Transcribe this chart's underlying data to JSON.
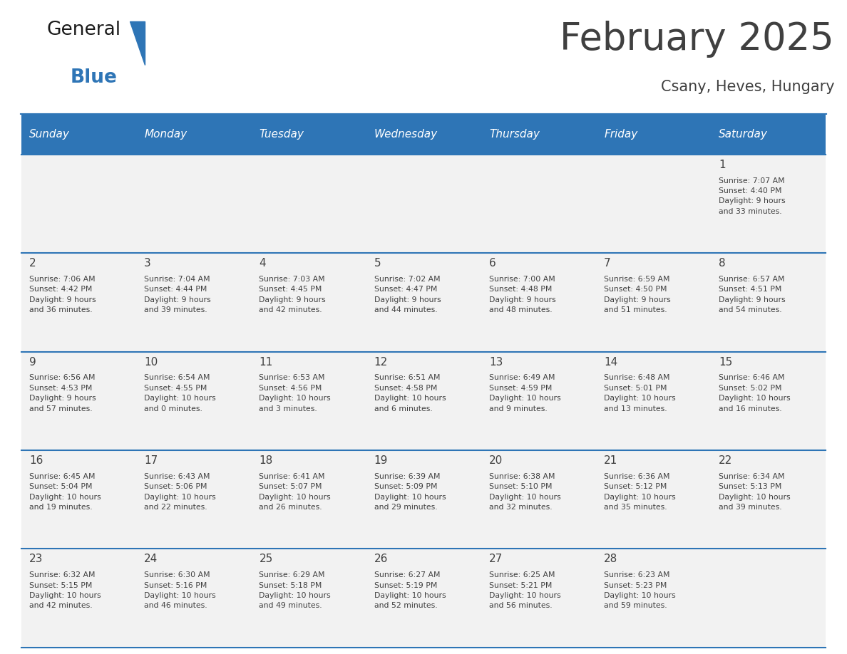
{
  "title": "February 2025",
  "subtitle": "Csany, Heves, Hungary",
  "header_color": "#2E75B6",
  "header_text_color": "#FFFFFF",
  "cell_bg_odd": "#F2F2F2",
  "cell_bg_even": "#FFFFFF",
  "divider_color": "#2E75B6",
  "text_color": "#404040",
  "days_of_week": [
    "Sunday",
    "Monday",
    "Tuesday",
    "Wednesday",
    "Thursday",
    "Friday",
    "Saturday"
  ],
  "weeks": [
    [
      {
        "day": "",
        "info": ""
      },
      {
        "day": "",
        "info": ""
      },
      {
        "day": "",
        "info": ""
      },
      {
        "day": "",
        "info": ""
      },
      {
        "day": "",
        "info": ""
      },
      {
        "day": "",
        "info": ""
      },
      {
        "day": "1",
        "info": "Sunrise: 7:07 AM\nSunset: 4:40 PM\nDaylight: 9 hours\nand 33 minutes."
      }
    ],
    [
      {
        "day": "2",
        "info": "Sunrise: 7:06 AM\nSunset: 4:42 PM\nDaylight: 9 hours\nand 36 minutes."
      },
      {
        "day": "3",
        "info": "Sunrise: 7:04 AM\nSunset: 4:44 PM\nDaylight: 9 hours\nand 39 minutes."
      },
      {
        "day": "4",
        "info": "Sunrise: 7:03 AM\nSunset: 4:45 PM\nDaylight: 9 hours\nand 42 minutes."
      },
      {
        "day": "5",
        "info": "Sunrise: 7:02 AM\nSunset: 4:47 PM\nDaylight: 9 hours\nand 44 minutes."
      },
      {
        "day": "6",
        "info": "Sunrise: 7:00 AM\nSunset: 4:48 PM\nDaylight: 9 hours\nand 48 minutes."
      },
      {
        "day": "7",
        "info": "Sunrise: 6:59 AM\nSunset: 4:50 PM\nDaylight: 9 hours\nand 51 minutes."
      },
      {
        "day": "8",
        "info": "Sunrise: 6:57 AM\nSunset: 4:51 PM\nDaylight: 9 hours\nand 54 minutes."
      }
    ],
    [
      {
        "day": "9",
        "info": "Sunrise: 6:56 AM\nSunset: 4:53 PM\nDaylight: 9 hours\nand 57 minutes."
      },
      {
        "day": "10",
        "info": "Sunrise: 6:54 AM\nSunset: 4:55 PM\nDaylight: 10 hours\nand 0 minutes."
      },
      {
        "day": "11",
        "info": "Sunrise: 6:53 AM\nSunset: 4:56 PM\nDaylight: 10 hours\nand 3 minutes."
      },
      {
        "day": "12",
        "info": "Sunrise: 6:51 AM\nSunset: 4:58 PM\nDaylight: 10 hours\nand 6 minutes."
      },
      {
        "day": "13",
        "info": "Sunrise: 6:49 AM\nSunset: 4:59 PM\nDaylight: 10 hours\nand 9 minutes."
      },
      {
        "day": "14",
        "info": "Sunrise: 6:48 AM\nSunset: 5:01 PM\nDaylight: 10 hours\nand 13 minutes."
      },
      {
        "day": "15",
        "info": "Sunrise: 6:46 AM\nSunset: 5:02 PM\nDaylight: 10 hours\nand 16 minutes."
      }
    ],
    [
      {
        "day": "16",
        "info": "Sunrise: 6:45 AM\nSunset: 5:04 PM\nDaylight: 10 hours\nand 19 minutes."
      },
      {
        "day": "17",
        "info": "Sunrise: 6:43 AM\nSunset: 5:06 PM\nDaylight: 10 hours\nand 22 minutes."
      },
      {
        "day": "18",
        "info": "Sunrise: 6:41 AM\nSunset: 5:07 PM\nDaylight: 10 hours\nand 26 minutes."
      },
      {
        "day": "19",
        "info": "Sunrise: 6:39 AM\nSunset: 5:09 PM\nDaylight: 10 hours\nand 29 minutes."
      },
      {
        "day": "20",
        "info": "Sunrise: 6:38 AM\nSunset: 5:10 PM\nDaylight: 10 hours\nand 32 minutes."
      },
      {
        "day": "21",
        "info": "Sunrise: 6:36 AM\nSunset: 5:12 PM\nDaylight: 10 hours\nand 35 minutes."
      },
      {
        "day": "22",
        "info": "Sunrise: 6:34 AM\nSunset: 5:13 PM\nDaylight: 10 hours\nand 39 minutes."
      }
    ],
    [
      {
        "day": "23",
        "info": "Sunrise: 6:32 AM\nSunset: 5:15 PM\nDaylight: 10 hours\nand 42 minutes."
      },
      {
        "day": "24",
        "info": "Sunrise: 6:30 AM\nSunset: 5:16 PM\nDaylight: 10 hours\nand 46 minutes."
      },
      {
        "day": "25",
        "info": "Sunrise: 6:29 AM\nSunset: 5:18 PM\nDaylight: 10 hours\nand 49 minutes."
      },
      {
        "day": "26",
        "info": "Sunrise: 6:27 AM\nSunset: 5:19 PM\nDaylight: 10 hours\nand 52 minutes."
      },
      {
        "day": "27",
        "info": "Sunrise: 6:25 AM\nSunset: 5:21 PM\nDaylight: 10 hours\nand 56 minutes."
      },
      {
        "day": "28",
        "info": "Sunrise: 6:23 AM\nSunset: 5:23 PM\nDaylight: 10 hours\nand 59 minutes."
      },
      {
        "day": "",
        "info": ""
      }
    ]
  ],
  "logo_text_general": "General",
  "logo_text_blue": "Blue",
  "logo_color_general": "#1a1a1a",
  "logo_color_blue": "#2E75B6",
  "fig_width": 11.88,
  "fig_height": 9.18,
  "dpi": 100
}
